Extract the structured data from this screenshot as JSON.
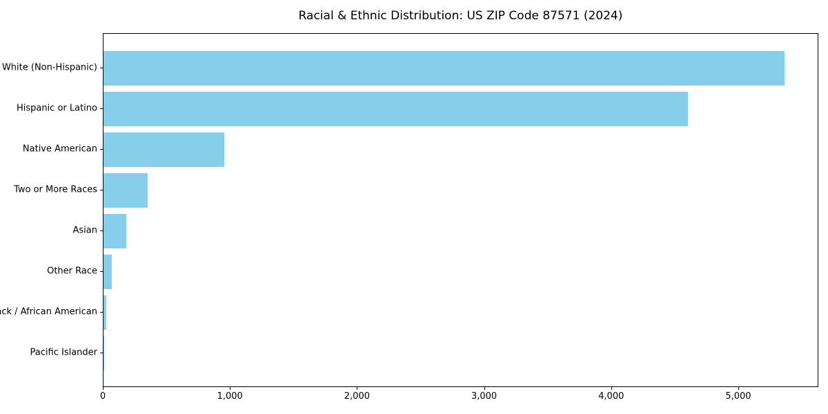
{
  "chart_data": {
    "type": "bar",
    "orientation": "horizontal",
    "title": "Racial & Ethnic Distribution: US ZIP Code 87571 (2024)",
    "categories": [
      "White (Non-Hispanic)",
      "Hispanic or Latino",
      "Native American",
      "Two or More Races",
      "Asian",
      "Other Race",
      "Black / African American",
      "Pacific Islander"
    ],
    "values": [
      5360,
      4600,
      950,
      345,
      180,
      65,
      23,
      5
    ],
    "xlabel": "",
    "ylabel": "",
    "xlim": [
      0,
      5630
    ],
    "xticks": [
      0,
      1000,
      2000,
      3000,
      4000,
      5000
    ],
    "xtick_labels": [
      "0",
      "1,000",
      "2,000",
      "3,000",
      "4,000",
      "5,000"
    ],
    "bar_color": "#87CEEB",
    "spine_color": "#000000",
    "grid": false,
    "legend": false
  }
}
